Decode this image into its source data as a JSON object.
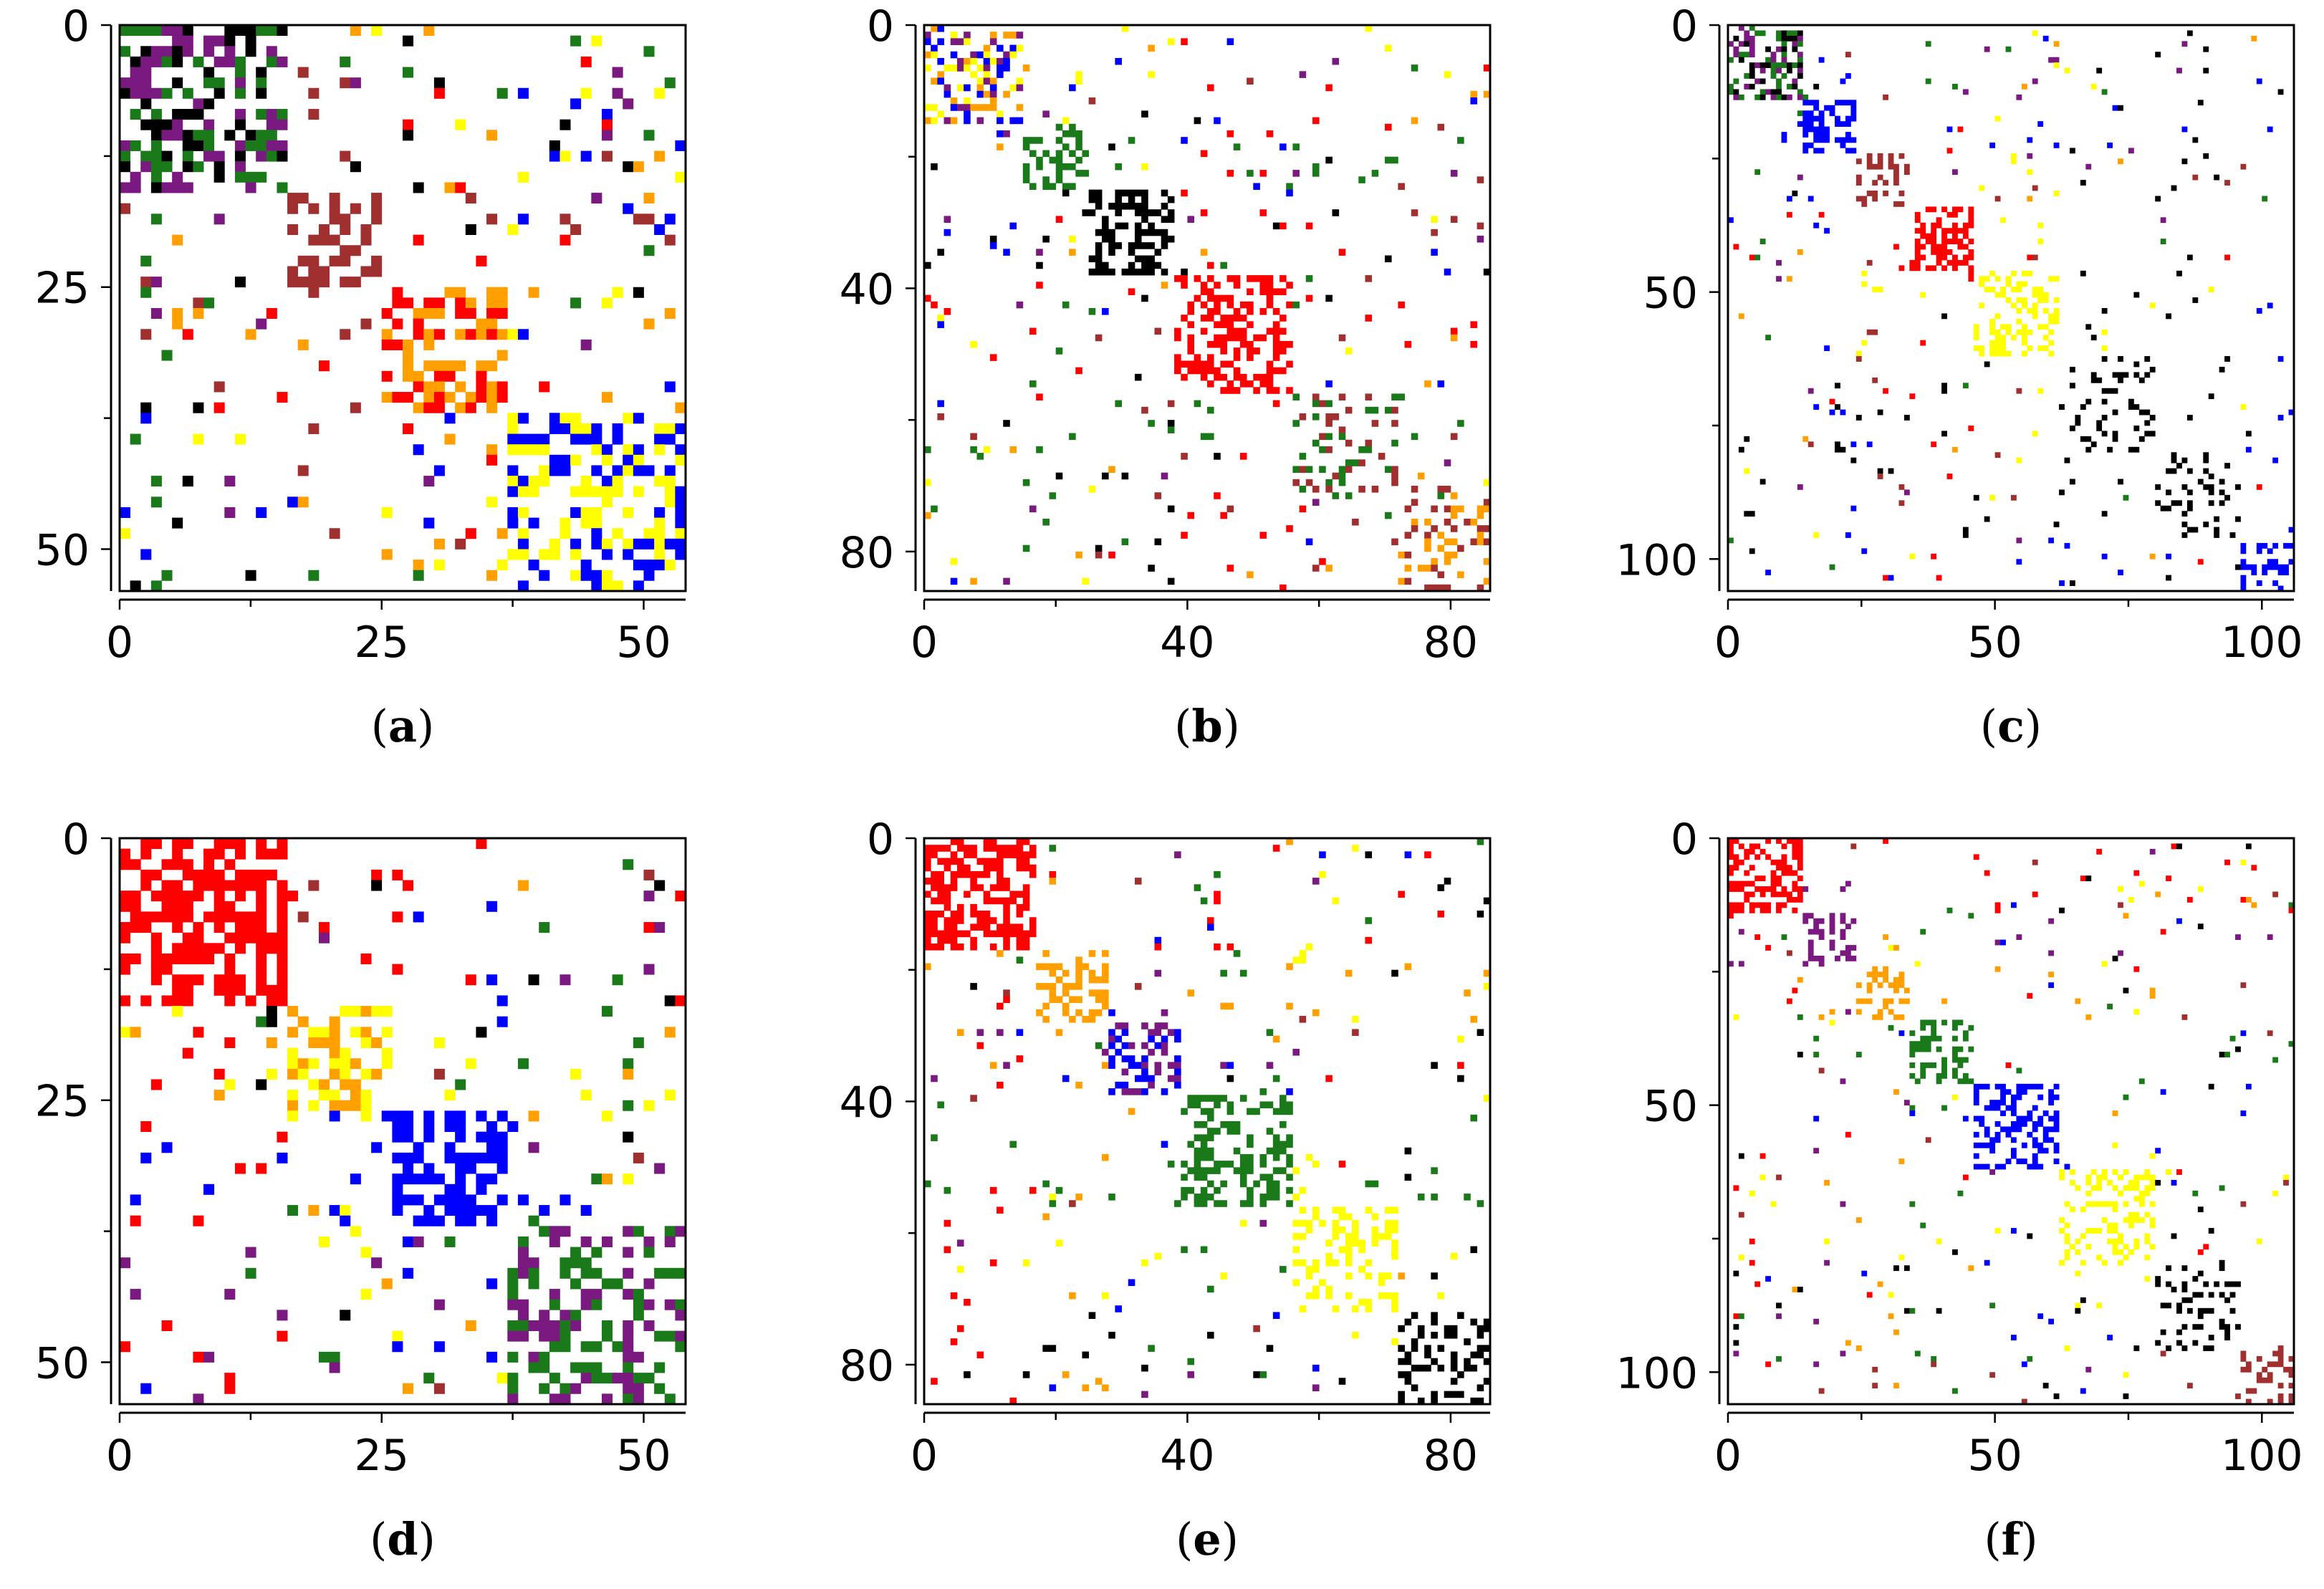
{
  "colors": {
    "green": "#1a7a1a",
    "black": "#000000",
    "purple": "#7a1a80",
    "brown": "#a03030",
    "red": "#ff0000",
    "orange": "#ffa000",
    "yellow": "#ffff00",
    "blue": "#0000ff",
    "axis": "#000000",
    "background": "#ffffff"
  },
  "chart_data": [
    {
      "type": "heatmap",
      "panel": "a",
      "label_open": "(",
      "label_letter": "a",
      "label_close": ")",
      "n": 54,
      "xticks": [
        0,
        25,
        50
      ],
      "yticks": [
        0,
        25,
        50
      ],
      "xlim": [
        0,
        54
      ],
      "ylim": [
        0,
        54
      ],
      "blocks": [
        {
          "range": [
            0,
            16
          ],
          "colors": [
            "green",
            "black",
            "purple"
          ],
          "density": 0.55
        },
        {
          "range": [
            16,
            25
          ],
          "colors": [
            "brown"
          ],
          "density": 0.45
        },
        {
          "range": [
            25,
            37
          ],
          "colors": [
            "red",
            "orange"
          ],
          "density": 0.55
        },
        {
          "range": [
            37,
            54
          ],
          "colors": [
            "blue",
            "yellow"
          ],
          "density": 0.45
        }
      ],
      "noise": 0.07
    },
    {
      "type": "heatmap",
      "panel": "b",
      "label_open": "(",
      "label_letter": "b",
      "label_close": ")",
      "n": 86,
      "xticks": [
        0,
        40,
        80
      ],
      "yticks": [
        0,
        40,
        80
      ],
      "xlim": [
        0,
        86
      ],
      "ylim": [
        0,
        86
      ],
      "blocks": [
        {
          "range": [
            0,
            15
          ],
          "colors": [
            "yellow",
            "blue",
            "purple",
            "orange"
          ],
          "density": 0.45
        },
        {
          "range": [
            15,
            25
          ],
          "colors": [
            "green"
          ],
          "density": 0.4
        },
        {
          "range": [
            25,
            38
          ],
          "colors": [
            "black"
          ],
          "density": 0.45
        },
        {
          "range": [
            38,
            56
          ],
          "colors": [
            "red"
          ],
          "density": 0.45
        },
        {
          "range": [
            56,
            72
          ],
          "colors": [
            "brown",
            "green"
          ],
          "density": 0.25
        },
        {
          "range": [
            72,
            86
          ],
          "colors": [
            "orange",
            "brown"
          ],
          "density": 0.3
        }
      ],
      "noise": 0.035
    },
    {
      "type": "heatmap",
      "panel": "c",
      "label_open": "(",
      "label_letter": "c",
      "label_close": ")",
      "n": 106,
      "xticks": [
        0,
        50,
        100
      ],
      "yticks": [
        0,
        50,
        100
      ],
      "xlim": [
        0,
        106
      ],
      "ylim": [
        0,
        106
      ],
      "blocks": [
        {
          "range": [
            0,
            14
          ],
          "colors": [
            "green",
            "purple",
            "black"
          ],
          "density": 0.5
        },
        {
          "range": [
            14,
            24
          ],
          "colors": [
            "blue"
          ],
          "density": 0.4
        },
        {
          "range": [
            24,
            34
          ],
          "colors": [
            "brown"
          ],
          "density": 0.35
        },
        {
          "range": [
            34,
            46
          ],
          "colors": [
            "red"
          ],
          "density": 0.55
        },
        {
          "range": [
            46,
            62
          ],
          "colors": [
            "yellow"
          ],
          "density": 0.35
        },
        {
          "range": [
            62,
            80
          ],
          "colors": [
            "black"
          ],
          "density": 0.2
        },
        {
          "range": [
            80,
            96
          ],
          "colors": [
            "black"
          ],
          "density": 0.15
        },
        {
          "range": [
            96,
            106
          ],
          "colors": [
            "blue"
          ],
          "density": 0.3
        }
      ],
      "noise": 0.025
    },
    {
      "type": "heatmap",
      "panel": "d",
      "label_open": "(",
      "label_letter": "d",
      "label_close": ")",
      "n": 54,
      "xticks": [
        0,
        25,
        50
      ],
      "yticks": [
        0,
        25,
        50
      ],
      "xlim": [
        0,
        54
      ],
      "ylim": [
        0,
        54
      ],
      "blocks": [
        {
          "range": [
            0,
            16
          ],
          "colors": [
            "red"
          ],
          "density": 0.6
        },
        {
          "range": [
            16,
            26
          ],
          "colors": [
            "yellow",
            "orange"
          ],
          "density": 0.5
        },
        {
          "range": [
            26,
            37
          ],
          "colors": [
            "blue"
          ],
          "density": 0.6
        },
        {
          "range": [
            37,
            54
          ],
          "colors": [
            "green",
            "purple"
          ],
          "density": 0.45
        }
      ],
      "noise": 0.07
    },
    {
      "type": "heatmap",
      "panel": "e",
      "label_open": "(",
      "label_letter": "e",
      "label_close": ")",
      "n": 86,
      "xticks": [
        0,
        40,
        80
      ],
      "yticks": [
        0,
        40,
        80
      ],
      "xlim": [
        0,
        86
      ],
      "ylim": [
        0,
        86
      ],
      "blocks": [
        {
          "range": [
            0,
            17
          ],
          "colors": [
            "red"
          ],
          "density": 0.55
        },
        {
          "range": [
            17,
            28
          ],
          "colors": [
            "orange"
          ],
          "density": 0.45
        },
        {
          "range": [
            28,
            39
          ],
          "colors": [
            "blue",
            "purple"
          ],
          "density": 0.5
        },
        {
          "range": [
            39,
            56
          ],
          "colors": [
            "green"
          ],
          "density": 0.4
        },
        {
          "range": [
            56,
            72
          ],
          "colors": [
            "yellow"
          ],
          "density": 0.35
        },
        {
          "range": [
            72,
            86
          ],
          "colors": [
            "black"
          ],
          "density": 0.3
        }
      ],
      "noise": 0.035
    },
    {
      "type": "heatmap",
      "panel": "f",
      "label_open": "(",
      "label_letter": "f",
      "label_close": ")",
      "n": 106,
      "xticks": [
        0,
        50,
        100
      ],
      "yticks": [
        0,
        50,
        100
      ],
      "xlim": [
        0,
        106
      ],
      "ylim": [
        0,
        106
      ],
      "blocks": [
        {
          "range": [
            0,
            14
          ],
          "colors": [
            "red"
          ],
          "density": 0.55
        },
        {
          "range": [
            14,
            24
          ],
          "colors": [
            "purple"
          ],
          "density": 0.4
        },
        {
          "range": [
            24,
            34
          ],
          "colors": [
            "orange"
          ],
          "density": 0.35
        },
        {
          "range": [
            34,
            46
          ],
          "colors": [
            "green"
          ],
          "density": 0.45
        },
        {
          "range": [
            46,
            62
          ],
          "colors": [
            "blue"
          ],
          "density": 0.4
        },
        {
          "range": [
            62,
            80
          ],
          "colors": [
            "yellow"
          ],
          "density": 0.3
        },
        {
          "range": [
            80,
            96
          ],
          "colors": [
            "black"
          ],
          "density": 0.2
        },
        {
          "range": [
            96,
            106
          ],
          "colors": [
            "brown"
          ],
          "density": 0.3
        }
      ],
      "noise": 0.025
    }
  ]
}
